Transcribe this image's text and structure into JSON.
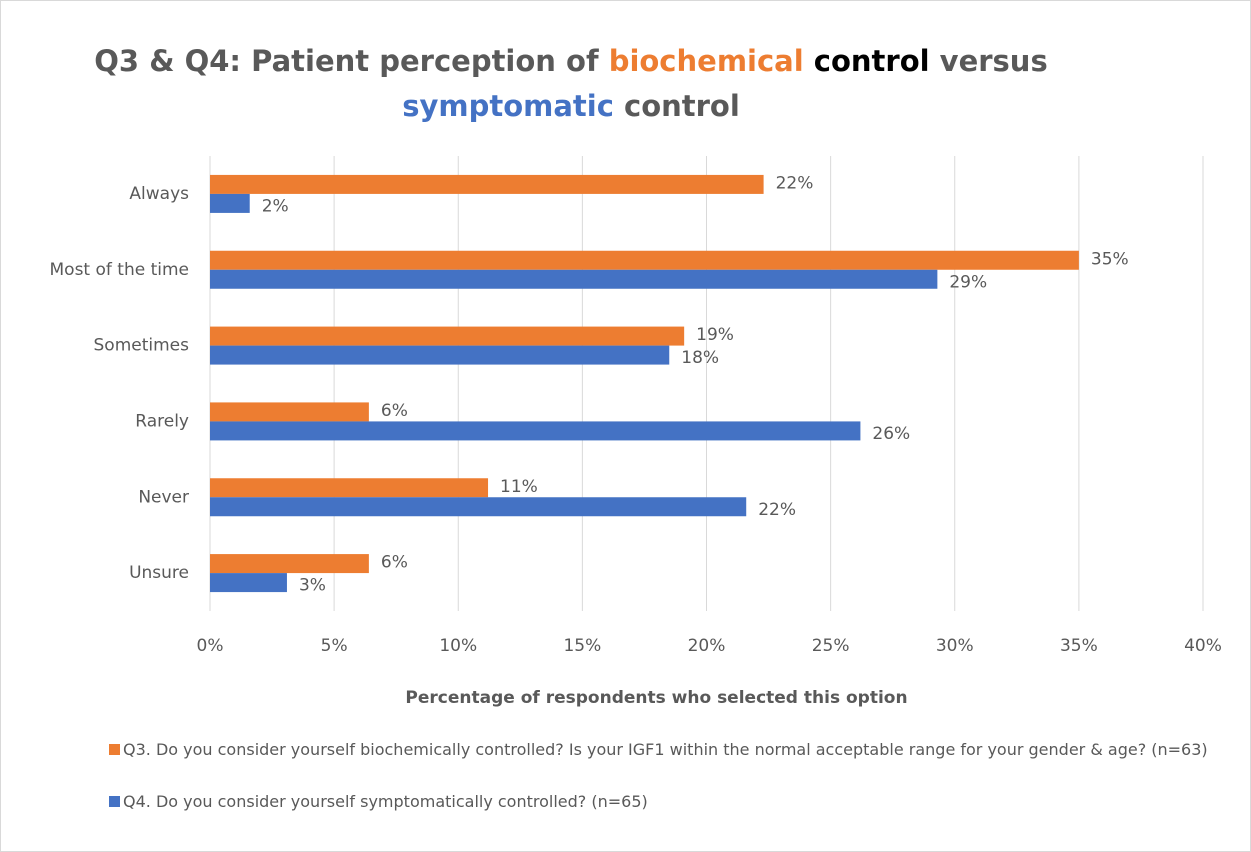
{
  "chart_data": {
    "type": "bar",
    "orientation": "horizontal",
    "title_lines": [
      [
        {
          "text": "Q3 & Q4: Patient perception of ",
          "color": "#595959"
        },
        {
          "text": "biochemical",
          "color": "#ed7d31"
        },
        {
          "text": " control",
          "color": "#000000"
        },
        {
          "text": " versus",
          "color": "#595959"
        }
      ],
      [
        {
          "text": "symptomatic",
          "color": "#4472c4"
        },
        {
          "text": " control",
          "color": "#595959"
        }
      ]
    ],
    "xlabel": "Percentage of respondents who selected this option",
    "categories": [
      "Always",
      "Most of the time",
      "Sometimes",
      "Rarely",
      "Never",
      "Unsure"
    ],
    "series": [
      {
        "name": "Q3. Do you consider yourself biochemically controlled? Is your IGF1 within the normal acceptable range for your gender & age? (n=63)",
        "color": "#ed7d31",
        "values": [
          22.3,
          35.0,
          19.1,
          6.4,
          11.2,
          6.4
        ],
        "value_labels": [
          "22%",
          "35%",
          "19%",
          "6%",
          "11%",
          "6%"
        ]
      },
      {
        "name": "Q4. Do you consider yourself symptomatically controlled? (n=65)",
        "color": "#4472c4",
        "values": [
          1.6,
          29.3,
          18.5,
          26.2,
          21.6,
          3.1
        ],
        "value_labels": [
          "2%",
          "29%",
          "18%",
          "26%",
          "22%",
          "3%"
        ]
      }
    ],
    "xlim": [
      0,
      40
    ],
    "xticks": [
      {
        "value": 0,
        "label": "0%"
      },
      {
        "value": 5,
        "label": "5%"
      },
      {
        "value": 10,
        "label": "10%"
      },
      {
        "value": 15,
        "label": "15%"
      },
      {
        "value": 20,
        "label": "20%"
      },
      {
        "value": 25,
        "label": "25%"
      },
      {
        "value": 30,
        "label": "30%"
      },
      {
        "value": 35,
        "label": "35%"
      },
      {
        "value": 40,
        "label": "40%"
      }
    ],
    "grid": true,
    "legend": "bottom"
  }
}
